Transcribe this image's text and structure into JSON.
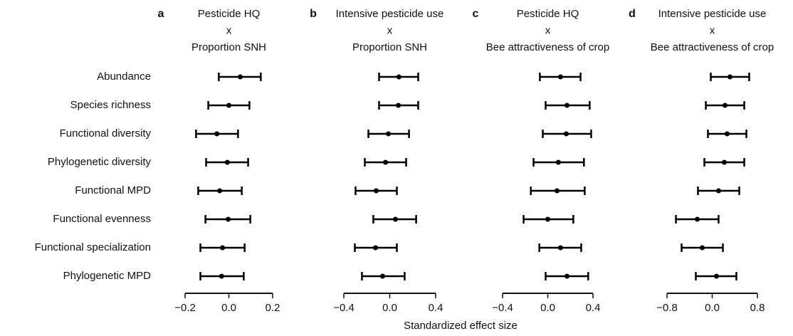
{
  "categories": [
    "Abundance",
    "Species richness",
    "Functional diversity",
    "Phylogenetic diversity",
    "Functional MPD",
    "Functional evenness",
    "Functional specialization",
    "Phylogenetic MPD"
  ],
  "xlabel": "Standardized effect size",
  "chart_data": [
    {
      "type": "forest",
      "label": "a",
      "title": [
        "Pesticide HQ",
        "x",
        "Proportion SNH"
      ],
      "color": "#000000",
      "values": [
        0.052,
        0.0,
        -0.055,
        -0.007,
        -0.042,
        -0.003,
        -0.029,
        -0.033
      ],
      "low": [
        -0.046,
        -0.094,
        -0.15,
        -0.104,
        -0.14,
        -0.107,
        -0.13,
        -0.13
      ],
      "high": [
        0.146,
        0.094,
        0.042,
        0.088,
        0.059,
        0.098,
        0.072,
        0.068
      ],
      "xlim": [
        -0.2,
        0.2
      ],
      "xticks": [
        {
          "value": -0.2,
          "label": "−0.2"
        },
        {
          "value": 0,
          "label": "0.0"
        },
        0.2
      ]
    },
    {
      "type": "forest",
      "label": "b",
      "title": [
        "Intensive pesticide use",
        "x",
        "Proportion SNH"
      ],
      "color": "#000000",
      "values": [
        0.08,
        0.075,
        -0.012,
        -0.037,
        -0.118,
        0.05,
        -0.124,
        -0.062
      ],
      "low": [
        -0.093,
        -0.093,
        -0.186,
        -0.217,
        -0.298,
        -0.143,
        -0.304,
        -0.242
      ],
      "high": [
        0.248,
        0.248,
        0.168,
        0.143,
        0.062,
        0.23,
        0.062,
        0.13
      ],
      "xlim": [
        -0.4,
        0.4
      ],
      "xticks": [
        {
          "value": -0.4,
          "label": "−0.4"
        },
        {
          "value": 0,
          "label": "0.0"
        },
        0.4
      ]
    },
    {
      "type": "forest",
      "label": "c",
      "title": [
        "Pesticide HQ",
        "x",
        "Bee attractiveness of crop"
      ],
      "color": "#000000",
      "values": [
        0.113,
        0.17,
        0.164,
        0.094,
        0.082,
        0.0,
        0.113,
        0.17
      ],
      "low": [
        -0.07,
        -0.019,
        -0.044,
        -0.126,
        -0.15,
        -0.214,
        -0.075,
        -0.019
      ],
      "high": [
        0.29,
        0.371,
        0.384,
        0.32,
        0.327,
        0.226,
        0.296,
        0.358
      ],
      "xlim": [
        -0.4,
        0.4
      ],
      "xticks": [
        {
          "value": -0.4,
          "label": "−0.4"
        },
        {
          "value": 0,
          "label": "0.0"
        },
        0.4
      ]
    },
    {
      "type": "forest",
      "label": "d",
      "title": [
        "Intensive pesticide use",
        "x",
        "Bee attractiveness of crop"
      ],
      "color": "#000000",
      "values": [
        0.315,
        0.227,
        0.264,
        0.214,
        0.113,
        -0.264,
        -0.176,
        0.076
      ],
      "low": [
        -0.025,
        -0.113,
        -0.076,
        -0.139,
        -0.252,
        -0.642,
        -0.542,
        -0.29
      ],
      "high": [
        0.655,
        0.567,
        0.605,
        0.567,
        0.479,
        0.113,
        0.189,
        0.428
      ],
      "xlim": [
        -0.8,
        0.8
      ],
      "xticks": [
        {
          "value": -0.8,
          "label": "−0.8"
        },
        {
          "value": 0,
          "label": "0.0"
        },
        0.8
      ]
    }
  ]
}
